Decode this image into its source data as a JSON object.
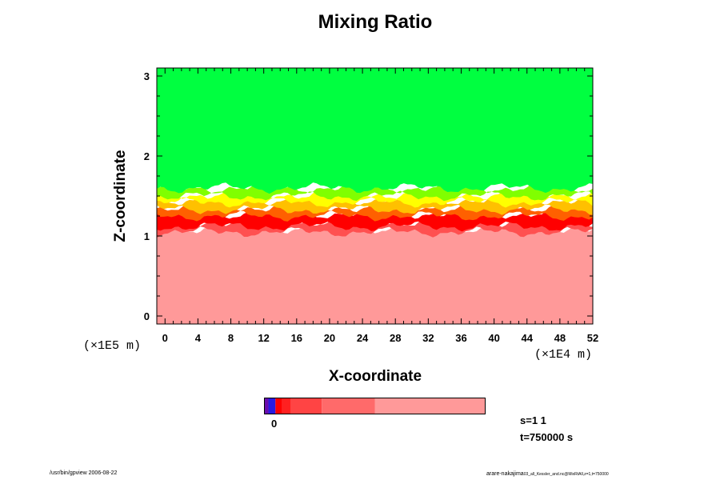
{
  "chart_data": {
    "type": "heatmap",
    "title": "Mixing Ratio",
    "xlabel": "X-coordinate",
    "ylabel": "Z-coordinate",
    "xlim": [
      -1,
      52
    ],
    "ylim": [
      -0.1,
      3.1
    ],
    "x_ticks": [
      "0",
      "4",
      "8",
      "12",
      "16",
      "20",
      "24",
      "28",
      "32",
      "36",
      "40",
      "44",
      "48",
      "52"
    ],
    "x_tick_values": [
      0,
      4,
      8,
      12,
      16,
      20,
      24,
      28,
      32,
      36,
      40,
      44,
      48,
      52
    ],
    "y_ticks": [
      "0",
      "1",
      "2",
      "3"
    ],
    "y_tick_values": [
      0,
      1,
      2,
      3
    ],
    "x_scale_label": "(×1E4 m)",
    "y_scale_label": "(×1E5 m)",
    "layers": [
      {
        "color": "#00ff40",
        "z_min": 1.6,
        "z_max": 3.1
      },
      {
        "color": "#80ff00",
        "z_min": 1.5,
        "z_max": 1.6
      },
      {
        "color": "#ffff00",
        "z_min": 1.42,
        "z_max": 1.52
      },
      {
        "color": "#ffc000",
        "z_min": 1.33,
        "z_max": 1.45
      },
      {
        "color": "#ff6000",
        "z_min": 1.25,
        "z_max": 1.36
      },
      {
        "color": "#ff0000",
        "z_min": 1.12,
        "z_max": 1.28
      },
      {
        "color": "#ff5050",
        "z_min": 1.05,
        "z_max": 1.18
      },
      {
        "color": "#ff9999",
        "z_min": -0.1,
        "z_max": 1.1
      }
    ],
    "colorbar": {
      "tick_label": "0",
      "segments": [
        {
          "color": "#6a0dad",
          "fraction": 0.018
        },
        {
          "color": "#2a1ae0",
          "fraction": 0.032
        },
        {
          "color": "#ff0000",
          "fraction": 0.03
        },
        {
          "color": "#ff2020",
          "fraction": 0.04
        },
        {
          "color": "#ff4444",
          "fraction": 0.14
        },
        {
          "color": "#ff6a6a",
          "fraction": 0.24
        },
        {
          "color": "#ff9999",
          "fraction": 0.5
        }
      ]
    },
    "grid": false
  },
  "annotations": {
    "s_label": "s=1 1",
    "t_label": "t=750000 s",
    "footer_left": "/usr/bin/gpview 2006-08-22",
    "footer_right_main": "arare-nakajima",
    "footer_right_small": "03_all_Kessler_and.nc@MixRtAll,z=1,t=750000"
  }
}
